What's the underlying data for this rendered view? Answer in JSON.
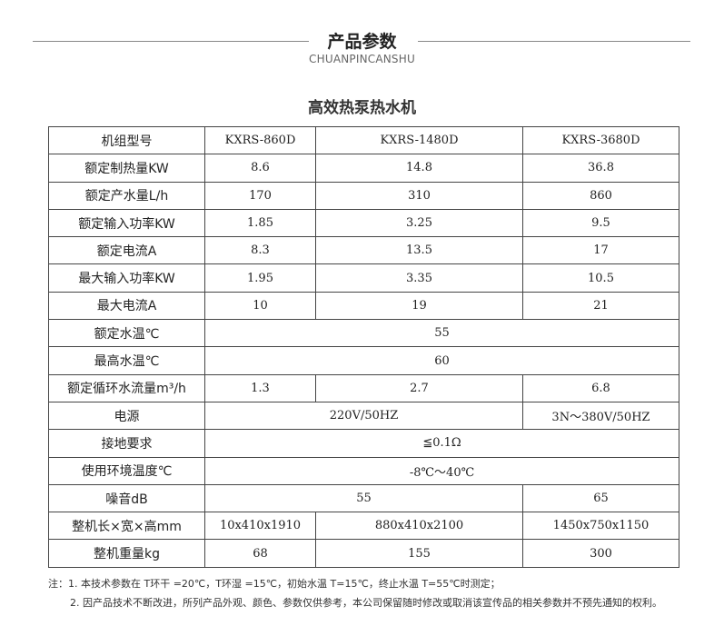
{
  "header": {
    "title": "产品参数",
    "subtitle": "CHUANPINCANSHU"
  },
  "table": {
    "title": "高效热泵热水机",
    "rows": [
      [
        "机组型号",
        "KXRS-860D",
        "KXRS-1480D",
        "KXRS-3680D"
      ],
      [
        "额定制热量KW",
        "8.6",
        "14.8",
        "36.8"
      ],
      [
        "额定产水量L/h",
        "170",
        "310",
        "860"
      ],
      [
        "额定输入功率KW",
        "1.85",
        "3.25",
        "9.5"
      ],
      [
        "额定电流A",
        "8.3",
        "13.5",
        "17"
      ],
      [
        "最大输入功率KW",
        "1.95",
        "3.35",
        "10.5"
      ],
      [
        "最大电流A",
        "10",
        "19",
        "21"
      ],
      [
        "额定水温℃",
        "55"
      ],
      [
        "最高水温℃",
        "60"
      ],
      [
        "额定循环水流量m³/h",
        "1.3",
        "2.7",
        "6.8"
      ],
      [
        "电源",
        "220V/50HZ",
        "3N～380V/50HZ"
      ],
      [
        "接地要求",
        "≦0.1Ω"
      ],
      [
        "使用环境温度℃",
        "-8℃～40℃"
      ],
      [
        "噪音dB",
        "55",
        "65"
      ],
      [
        "整机长×宽×高mm",
        "10x410x1910",
        "880x410x2100",
        "1450x750x1150"
      ],
      [
        "整机重量kg",
        "68",
        "155",
        "300"
      ]
    ]
  },
  "notes": [
    "注：1. 本技术参数在 T环干 =20℃，T环湿 =15℃，初始水温 T=15℃，终止水温 T=55℃时测定；",
    "2. 因产品技术不断改进，所列产品外观、颜色、参数仅供参考，本公司保留随时修改或取消该宣传品的相关参数并不预先通知的权利。"
  ]
}
